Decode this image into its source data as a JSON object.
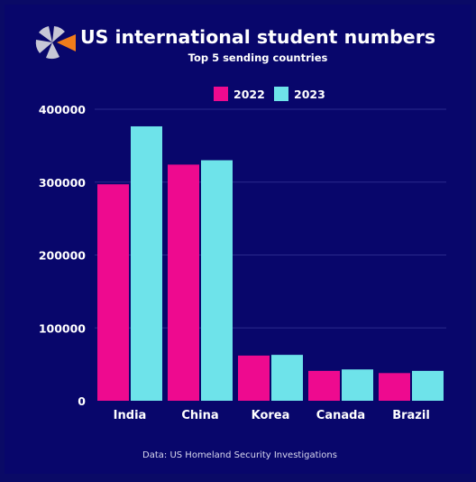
{
  "chart_data": {
    "type": "bar",
    "title": "US international student numbers",
    "subtitle": "Top 5 sending countries",
    "source": "Data: US Homeland Security Investigations",
    "categories": [
      "India",
      "China",
      "Korea",
      "Canada",
      "Brazil"
    ],
    "series": [
      {
        "name": "2022",
        "color": "#ee0a8f",
        "values": [
          297000,
          324000,
          62000,
          41000,
          38000
        ]
      },
      {
        "name": "2023",
        "color": "#6ee3ea",
        "values": [
          376500,
          330000,
          63000,
          43000,
          41000
        ]
      }
    ],
    "ylim": [
      0,
      400000
    ],
    "yticks": [
      "0",
      "100000",
      "200000",
      "300000",
      "400000"
    ],
    "xlabel": "",
    "ylabel": "",
    "grid": true,
    "legend_position": "top-center"
  },
  "logo": {
    "icon": "pinwheel-logo-icon",
    "colors": [
      "#c7c7d6",
      "#f07c1b"
    ]
  }
}
